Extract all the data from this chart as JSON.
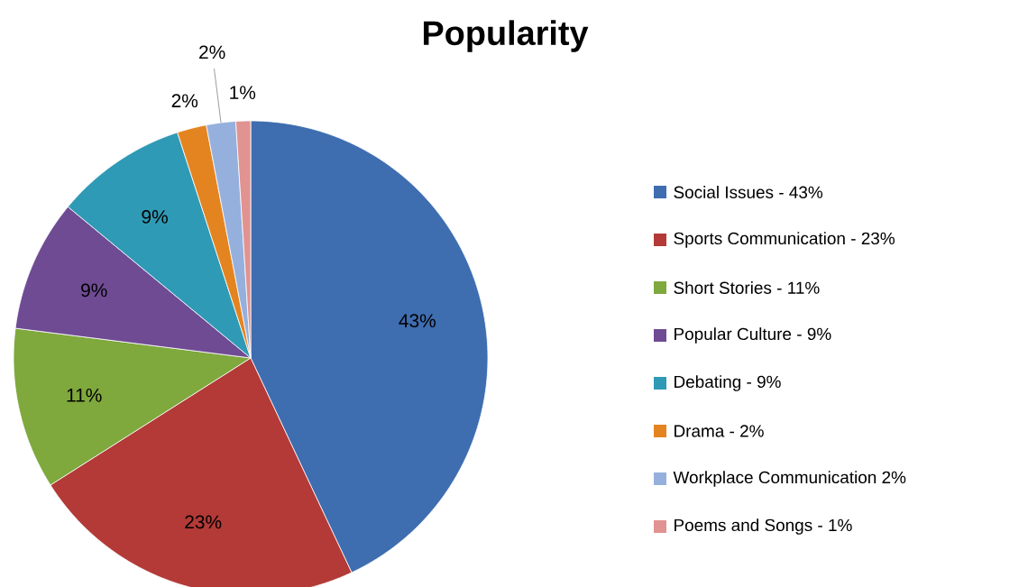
{
  "chart_data": {
    "type": "pie",
    "title": "Popularity",
    "categories": [
      "Social Issues - 43%",
      "Sports Communication - 23%",
      "Short Stories - 11%",
      "Popular Culture - 9%",
      "Debating - 9%",
      "Drama - 2%",
      "Workplace Communication 2%",
      "Poems and Songs - 1%"
    ],
    "values": [
      43,
      23,
      11,
      9,
      9,
      2,
      2,
      1
    ],
    "value_labels": [
      "43%",
      "23%",
      "11%",
      "9%",
      "9%",
      "2%",
      "2%",
      "1%"
    ],
    "colors": [
      "#3e6db0",
      "#b33a37",
      "#7fa83d",
      "#6f4b94",
      "#2f9ab5",
      "#e48420",
      "#95b0dc",
      "#e09391"
    ],
    "legend": "right"
  }
}
